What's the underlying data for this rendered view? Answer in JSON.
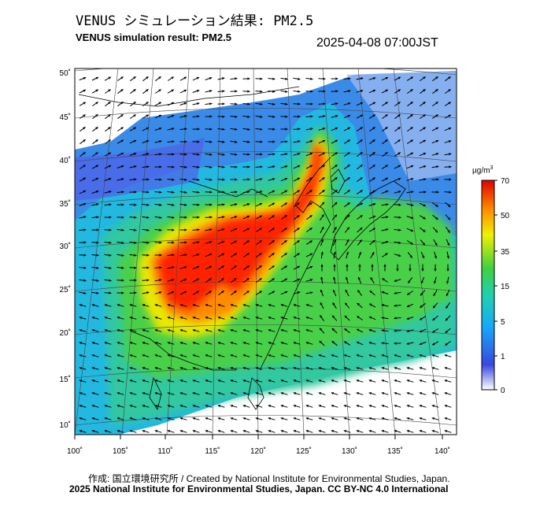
{
  "header": {
    "title_jp": "VENUS シミュレーション結果: PM2.5",
    "title_en": "VENUS simulation result: PM2.5",
    "timestamp": "2025-04-08 07:00JST"
  },
  "map": {
    "projection": "conic",
    "lon_ticks": [
      "100˚",
      "105˚",
      "110˚",
      "115˚",
      "120˚",
      "125˚",
      "130˚",
      "135˚",
      "140˚"
    ],
    "lat_ticks": [
      "50˚",
      "45˚",
      "40˚",
      "35˚",
      "30˚",
      "25˚",
      "20˚",
      "15˚",
      "10˚"
    ],
    "lon_range": [
      100,
      140
    ],
    "lat_range": [
      10,
      50
    ],
    "features": [
      "coastlines",
      "graticule",
      "wind-vectors",
      "pm25-field"
    ]
  },
  "colorbar": {
    "unit": "µg/m",
    "unit_sup": "3",
    "ticks": [
      "70",
      "50",
      "35",
      "15",
      "5",
      "1",
      "0"
    ],
    "colors": [
      "#ffffff",
      "#3050e0",
      "#20a0ff",
      "#20d0a0",
      "#40d040",
      "#e0e000",
      "#ff8000",
      "#ff1000",
      "#c00000"
    ]
  },
  "footer": {
    "credit": "作成: 国立環境研究所 / Created by National Institute for Environmental Studies, Japan.",
    "copyright": "2025 National Institute for Environmental Studies, Japan. CC BY-NC 4.0 International"
  }
}
